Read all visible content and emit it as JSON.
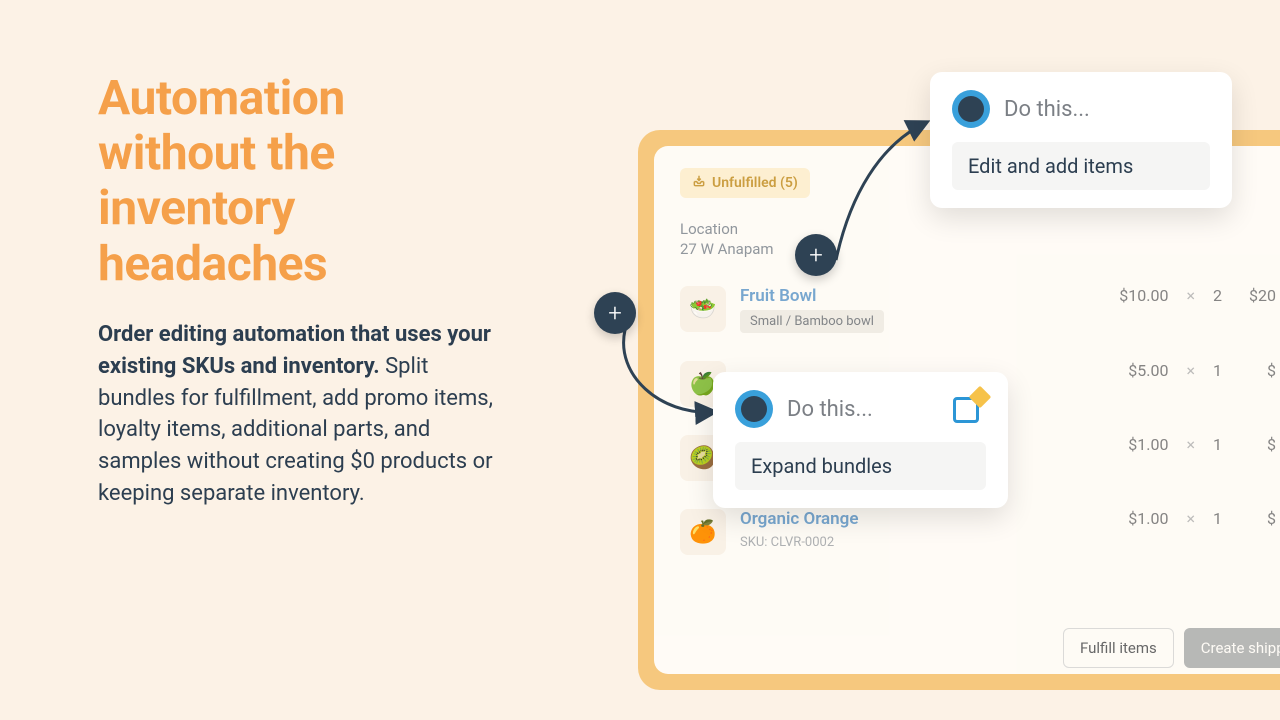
{
  "headline": "Automation without the inventory headaches",
  "subtext_bold": "Order editing automation that uses your existing SKUs and inventory.",
  "subtext_rest": " Split bundles for fulfillment, add promo items, loyalty items, additional parts, and samples without creating $0 products or keeping separate inventory.",
  "colors": {
    "bg": "#FCF2E6",
    "accent": "#F5A04A",
    "dark": "#2C3E50",
    "frame": "#F6C87E",
    "blue": "#39A0DB",
    "navy": "#2E4254",
    "link": "#6FA5D6"
  },
  "panel": {
    "badge_text": "Unfulfilled (5)",
    "location_label": "Location",
    "location_value": "27 W Anapam",
    "items": [
      {
        "emoji": "🥗",
        "title": "Fruit Bowl",
        "variant": "Small / Bamboo bowl",
        "sku": "",
        "price": "$10.00",
        "qty": "2",
        "line": "$20"
      },
      {
        "emoji": "🍏",
        "title": "",
        "variant": "",
        "sku": "",
        "price": "$5.00",
        "qty": "1",
        "line": "$"
      },
      {
        "emoji": "🥝",
        "title": "",
        "variant": "",
        "sku": "",
        "price": "$1.00",
        "qty": "1",
        "line": "$"
      },
      {
        "emoji": "🍊",
        "title": "Organic Orange",
        "variant": "",
        "sku": "SKU: CLVR-0002",
        "price": "$1.00",
        "qty": "1",
        "line": "$"
      }
    ],
    "fulfill_btn": "Fulfill items",
    "create_btn": "Create shipping"
  },
  "popup_top": {
    "title": "Do this...",
    "action": "Edit and add items"
  },
  "popup_mid": {
    "title": "Do this...",
    "action": "Expand bundles"
  }
}
